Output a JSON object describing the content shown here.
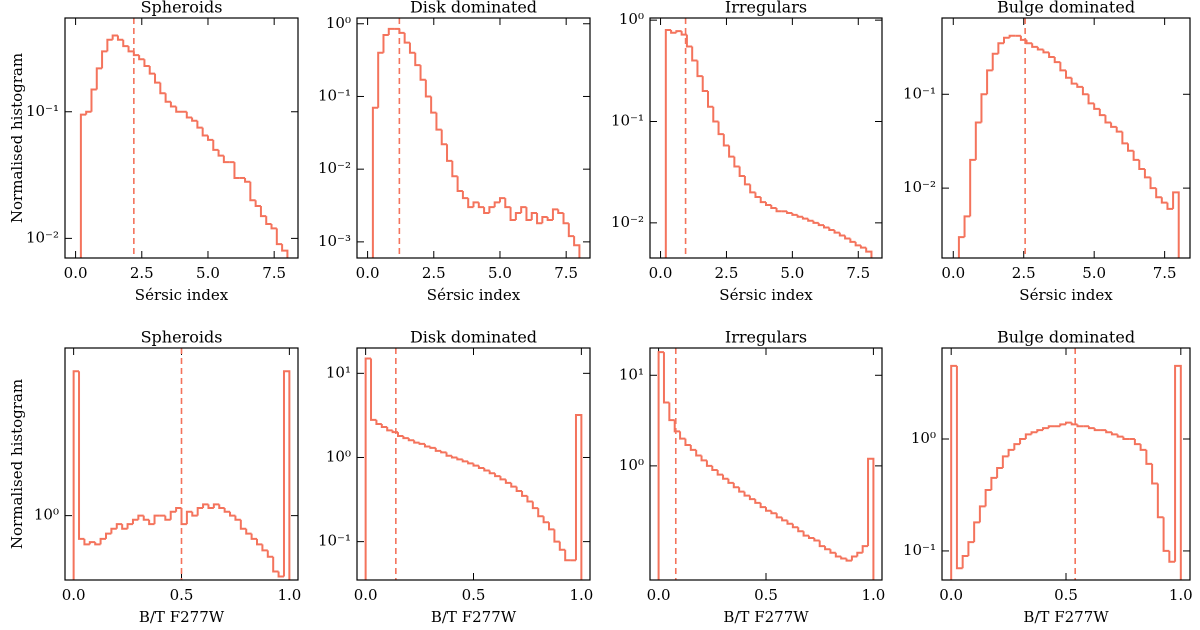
{
  "chart_data": [
    {
      "type": "histogram",
      "title": "Spheroids",
      "xlabel": "Sérsic index",
      "ylabel": "Normalised histogram",
      "yscale": "log",
      "color": "#f4735c",
      "vline": 2.2,
      "bins": [
        0.2,
        0.4,
        0.6,
        0.8,
        1.0,
        1.2,
        1.4,
        1.6,
        1.8,
        2.0,
        2.2,
        2.4,
        2.6,
        2.8,
        3.0,
        3.2,
        3.4,
        3.6,
        3.8,
        4.0,
        4.2,
        4.4,
        4.6,
        4.8,
        5.0,
        5.2,
        5.4,
        5.6,
        5.8,
        6.0,
        6.2,
        6.4,
        6.6,
        6.8,
        7.0,
        7.2,
        7.4,
        7.6,
        7.8,
        8.0
      ],
      "values": [
        0.095,
        0.1,
        0.15,
        0.22,
        0.3,
        0.37,
        0.4,
        0.37,
        0.33,
        0.3,
        0.28,
        0.26,
        0.23,
        0.2,
        0.17,
        0.14,
        0.12,
        0.11,
        0.1,
        0.1,
        0.09,
        0.085,
        0.075,
        0.065,
        0.06,
        0.05,
        0.045,
        0.04,
        0.04,
        0.03,
        0.03,
        0.028,
        0.02,
        0.018,
        0.015,
        0.013,
        0.012,
        0.009,
        0.008
      ],
      "xlim": [
        -0.4,
        8.4
      ],
      "xticks": [
        {
          "value": 0,
          "label": "0.0"
        },
        {
          "value": 2.5,
          "label": "2.5"
        },
        {
          "value": 5,
          "label": "5.0"
        },
        {
          "value": 7.5,
          "label": "7.5"
        }
      ],
      "ylim": [
        0.007,
        0.55
      ],
      "yticks": [
        {
          "value": 0.01,
          "label": "10⁻²"
        },
        {
          "value": 0.1,
          "label": "10⁻¹"
        }
      ]
    },
    {
      "type": "histogram",
      "title": "Disk dominated",
      "xlabel": "Sérsic index",
      "yscale": "log",
      "color": "#f4735c",
      "vline": 1.2,
      "bins": [
        0.2,
        0.4,
        0.6,
        0.8,
        1.0,
        1.2,
        1.4,
        1.6,
        1.8,
        2.0,
        2.2,
        2.4,
        2.6,
        2.8,
        3.0,
        3.2,
        3.4,
        3.6,
        3.8,
        4.0,
        4.2,
        4.4,
        4.6,
        4.8,
        5.0,
        5.2,
        5.4,
        5.6,
        5.8,
        6.0,
        6.2,
        6.4,
        6.6,
        6.8,
        7.0,
        7.2,
        7.4,
        7.6,
        7.8,
        8.0
      ],
      "values": [
        0.07,
        0.4,
        0.7,
        0.85,
        0.85,
        0.75,
        0.55,
        0.4,
        0.27,
        0.17,
        0.1,
        0.06,
        0.035,
        0.022,
        0.013,
        0.008,
        0.005,
        0.004,
        0.003,
        0.0035,
        0.003,
        0.0025,
        0.003,
        0.0035,
        0.004,
        0.003,
        0.002,
        0.0025,
        0.003,
        0.002,
        0.0025,
        0.0018,
        0.0022,
        0.002,
        0.0028,
        0.0025,
        0.0018,
        0.0012,
        0.0009
      ],
      "xlim": [
        -0.4,
        8.4
      ],
      "xticks": [
        {
          "value": 0,
          "label": "0.0"
        },
        {
          "value": 2.5,
          "label": "2.5"
        },
        {
          "value": 5,
          "label": "5.0"
        },
        {
          "value": 7.5,
          "label": "7.5"
        }
      ],
      "ylim": [
        0.0006,
        1.2
      ],
      "yticks": [
        {
          "value": 0.001,
          "label": "10⁻³"
        },
        {
          "value": 0.01,
          "label": "10⁻²"
        },
        {
          "value": 0.1,
          "label": "10⁻¹"
        },
        {
          "value": 1,
          "label": "10⁰"
        }
      ]
    },
    {
      "type": "histogram",
      "title": "Irregulars",
      "xlabel": "Sérsic index",
      "yscale": "log",
      "color": "#f4735c",
      "vline": 0.95,
      "bins": [
        0.2,
        0.4,
        0.6,
        0.8,
        1.0,
        1.2,
        1.4,
        1.6,
        1.8,
        2.0,
        2.2,
        2.4,
        2.6,
        2.8,
        3.0,
        3.2,
        3.4,
        3.6,
        3.8,
        4.0,
        4.2,
        4.4,
        4.6,
        4.8,
        5.0,
        5.2,
        5.4,
        5.6,
        5.8,
        6.0,
        6.2,
        6.4,
        6.6,
        6.8,
        7.0,
        7.2,
        7.4,
        7.6,
        7.8,
        8.0
      ],
      "values": [
        0.8,
        0.75,
        0.78,
        0.72,
        0.55,
        0.4,
        0.28,
        0.2,
        0.14,
        0.1,
        0.075,
        0.058,
        0.045,
        0.036,
        0.029,
        0.024,
        0.02,
        0.018,
        0.016,
        0.015,
        0.014,
        0.013,
        0.013,
        0.0125,
        0.012,
        0.0115,
        0.011,
        0.0105,
        0.01,
        0.0095,
        0.009,
        0.0085,
        0.008,
        0.0075,
        0.007,
        0.0065,
        0.006,
        0.0057,
        0.0052
      ],
      "xlim": [
        -0.4,
        8.4
      ],
      "xticks": [
        {
          "value": 0,
          "label": "0.0"
        },
        {
          "value": 2.5,
          "label": "2.5"
        },
        {
          "value": 5,
          "label": "5.0"
        },
        {
          "value": 7.5,
          "label": "7.5"
        }
      ],
      "ylim": [
        0.0045,
        1.05
      ],
      "yticks": [
        {
          "value": 0.01,
          "label": "10⁻²"
        },
        {
          "value": 0.1,
          "label": "10⁻¹"
        },
        {
          "value": 1,
          "label": "10⁰"
        }
      ]
    },
    {
      "type": "histogram",
      "title": "Bulge dominated",
      "xlabel": "Sérsic index",
      "yscale": "log",
      "color": "#f4735c",
      "vline": 2.55,
      "bins": [
        0.2,
        0.4,
        0.6,
        0.8,
        1.0,
        1.2,
        1.4,
        1.6,
        1.8,
        2.0,
        2.2,
        2.4,
        2.6,
        2.8,
        3.0,
        3.2,
        3.4,
        3.6,
        3.8,
        4.0,
        4.2,
        4.4,
        4.6,
        4.8,
        5.0,
        5.2,
        5.4,
        5.6,
        5.8,
        6.0,
        6.2,
        6.4,
        6.6,
        6.8,
        7.0,
        7.2,
        7.4,
        7.6,
        7.8,
        8.0
      ],
      "values": [
        0.003,
        0.005,
        0.02,
        0.05,
        0.1,
        0.18,
        0.27,
        0.35,
        0.4,
        0.42,
        0.42,
        0.38,
        0.35,
        0.32,
        0.3,
        0.28,
        0.25,
        0.22,
        0.18,
        0.15,
        0.13,
        0.12,
        0.1,
        0.08,
        0.07,
        0.06,
        0.05,
        0.045,
        0.04,
        0.03,
        0.025,
        0.02,
        0.016,
        0.013,
        0.01,
        0.008,
        0.007,
        0.006,
        0.009
      ],
      "xlim": [
        -0.4,
        8.4
      ],
      "xticks": [
        {
          "value": 0,
          "label": "0.0"
        },
        {
          "value": 2.5,
          "label": "2.5"
        },
        {
          "value": 5,
          "label": "5.0"
        },
        {
          "value": 7.5,
          "label": "7.5"
        }
      ],
      "ylim": [
        0.0018,
        0.65
      ],
      "yticks": [
        {
          "value": 0.01,
          "label": "10⁻²"
        },
        {
          "value": 0.1,
          "label": "10⁻¹"
        }
      ]
    },
    {
      "type": "histogram",
      "title": "Spheroids",
      "xlabel": "B/T F277W",
      "ylabel": "Normalised histogram",
      "yscale": "log",
      "color": "#f4735c",
      "vline": 0.5,
      "bins": [
        0,
        0.025,
        0.05,
        0.075,
        0.1,
        0.125,
        0.15,
        0.175,
        0.2,
        0.225,
        0.25,
        0.275,
        0.3,
        0.325,
        0.35,
        0.375,
        0.4,
        0.425,
        0.45,
        0.475,
        0.5,
        0.525,
        0.55,
        0.575,
        0.6,
        0.625,
        0.65,
        0.675,
        0.7,
        0.725,
        0.75,
        0.775,
        0.8,
        0.825,
        0.85,
        0.875,
        0.9,
        0.925,
        0.95,
        0.975,
        1
      ],
      "values": [
        6,
        0.75,
        0.7,
        0.72,
        0.7,
        0.75,
        0.8,
        0.85,
        0.9,
        0.85,
        0.9,
        0.95,
        1.0,
        0.95,
        0.9,
        1.0,
        1.0,
        0.95,
        1.05,
        1.1,
        0.9,
        1.05,
        1.0,
        1.1,
        1.15,
        1.1,
        1.15,
        1.1,
        1.05,
        1.0,
        0.95,
        0.85,
        0.8,
        0.75,
        0.7,
        0.65,
        0.6,
        0.5,
        0.47,
        6
      ],
      "xlim": [
        -0.04,
        1.04
      ],
      "xticks": [
        {
          "value": 0,
          "label": "0.0"
        },
        {
          "value": 0.5,
          "label": "0.5"
        },
        {
          "value": 1,
          "label": "1.0"
        }
      ],
      "ylim": [
        0.45,
        8
      ],
      "yticks": [
        {
          "value": 1,
          "label": "10⁰"
        }
      ]
    },
    {
      "type": "histogram",
      "title": "Disk dominated",
      "xlabel": "B/T F277W",
      "yscale": "log",
      "color": "#f4735c",
      "vline": 0.14,
      "bins": [
        0,
        0.025,
        0.05,
        0.075,
        0.1,
        0.125,
        0.15,
        0.175,
        0.2,
        0.225,
        0.25,
        0.275,
        0.3,
        0.325,
        0.35,
        0.375,
        0.4,
        0.425,
        0.45,
        0.475,
        0.5,
        0.525,
        0.55,
        0.575,
        0.6,
        0.625,
        0.65,
        0.675,
        0.7,
        0.725,
        0.75,
        0.775,
        0.8,
        0.825,
        0.85,
        0.875,
        0.9,
        0.925,
        0.95,
        0.975,
        1
      ],
      "values": [
        15,
        2.8,
        2.5,
        2.3,
        2.1,
        2.0,
        1.8,
        1.7,
        1.6,
        1.5,
        1.45,
        1.35,
        1.3,
        1.2,
        1.15,
        1.05,
        1.0,
        0.95,
        0.9,
        0.85,
        0.8,
        0.75,
        0.7,
        0.65,
        0.6,
        0.55,
        0.5,
        0.45,
        0.4,
        0.35,
        0.3,
        0.25,
        0.2,
        0.17,
        0.14,
        0.1,
        0.08,
        0.06,
        0.06,
        3.2
      ],
      "xlim": [
        -0.04,
        1.04
      ],
      "xticks": [
        {
          "value": 0,
          "label": "0.0"
        },
        {
          "value": 0.5,
          "label": "0.5"
        },
        {
          "value": 1,
          "label": "1.0"
        }
      ],
      "ylim": [
        0.035,
        20
      ],
      "yticks": [
        {
          "value": 0.1,
          "label": "10⁻¹"
        },
        {
          "value": 1,
          "label": "10⁰"
        },
        {
          "value": 10,
          "label": "10¹"
        }
      ]
    },
    {
      "type": "histogram",
      "title": "Irregulars",
      "xlabel": "B/T F277W",
      "yscale": "log",
      "color": "#f4735c",
      "vline": 0.08,
      "bins": [
        0,
        0.025,
        0.05,
        0.075,
        0.1,
        0.125,
        0.15,
        0.175,
        0.2,
        0.225,
        0.25,
        0.275,
        0.3,
        0.325,
        0.35,
        0.375,
        0.4,
        0.425,
        0.45,
        0.475,
        0.5,
        0.525,
        0.55,
        0.575,
        0.6,
        0.625,
        0.65,
        0.675,
        0.7,
        0.725,
        0.75,
        0.775,
        0.8,
        0.825,
        0.85,
        0.875,
        0.9,
        0.925,
        0.95,
        0.975,
        1
      ],
      "values": [
        18,
        5,
        3.2,
        2.4,
        2.0,
        1.7,
        1.5,
        1.3,
        1.15,
        1.0,
        0.9,
        0.8,
        0.72,
        0.65,
        0.58,
        0.52,
        0.47,
        0.43,
        0.39,
        0.35,
        0.32,
        0.3,
        0.27,
        0.25,
        0.23,
        0.21,
        0.19,
        0.17,
        0.16,
        0.15,
        0.13,
        0.12,
        0.11,
        0.1,
        0.095,
        0.09,
        0.1,
        0.11,
        0.13,
        1.2
      ],
      "xlim": [
        -0.04,
        1.04
      ],
      "xticks": [
        {
          "value": 0,
          "label": "0.0"
        },
        {
          "value": 0.5,
          "label": "0.5"
        },
        {
          "value": 1,
          "label": "1.0"
        }
      ],
      "ylim": [
        0.055,
        20
      ],
      "yticks": [
        {
          "value": 1,
          "label": "10⁰"
        },
        {
          "value": 10,
          "label": "10¹"
        }
      ]
    },
    {
      "type": "histogram",
      "title": "Bulge dominated",
      "xlabel": "B/T F277W",
      "yscale": "log",
      "color": "#f4735c",
      "vline": 0.54,
      "bins": [
        0,
        0.025,
        0.05,
        0.075,
        0.1,
        0.125,
        0.15,
        0.175,
        0.2,
        0.225,
        0.25,
        0.275,
        0.3,
        0.325,
        0.35,
        0.375,
        0.4,
        0.425,
        0.45,
        0.475,
        0.5,
        0.525,
        0.55,
        0.575,
        0.6,
        0.625,
        0.65,
        0.675,
        0.7,
        0.725,
        0.75,
        0.775,
        0.8,
        0.825,
        0.85,
        0.875,
        0.9,
        0.925,
        0.95,
        0.975,
        1
      ],
      "values": [
        4.5,
        0.07,
        0.09,
        0.12,
        0.18,
        0.25,
        0.35,
        0.45,
        0.55,
        0.7,
        0.8,
        0.9,
        1.0,
        1.1,
        1.15,
        1.2,
        1.25,
        1.3,
        1.3,
        1.35,
        1.4,
        1.35,
        1.3,
        1.3,
        1.25,
        1.2,
        1.2,
        1.15,
        1.1,
        1.05,
        1.0,
        1.0,
        0.9,
        0.8,
        0.6,
        0.4,
        0.2,
        0.1,
        0.08,
        4.5
      ],
      "xlim": [
        -0.04,
        1.04
      ],
      "xticks": [
        {
          "value": 0,
          "label": "0.0"
        },
        {
          "value": 0.5,
          "label": "0.5"
        },
        {
          "value": 1,
          "label": "1.0"
        }
      ],
      "ylim": [
        0.055,
        6.5
      ],
      "yticks": [
        {
          "value": 0.1,
          "label": "10⁻¹"
        },
        {
          "value": 1,
          "label": "10⁰"
        }
      ]
    }
  ]
}
